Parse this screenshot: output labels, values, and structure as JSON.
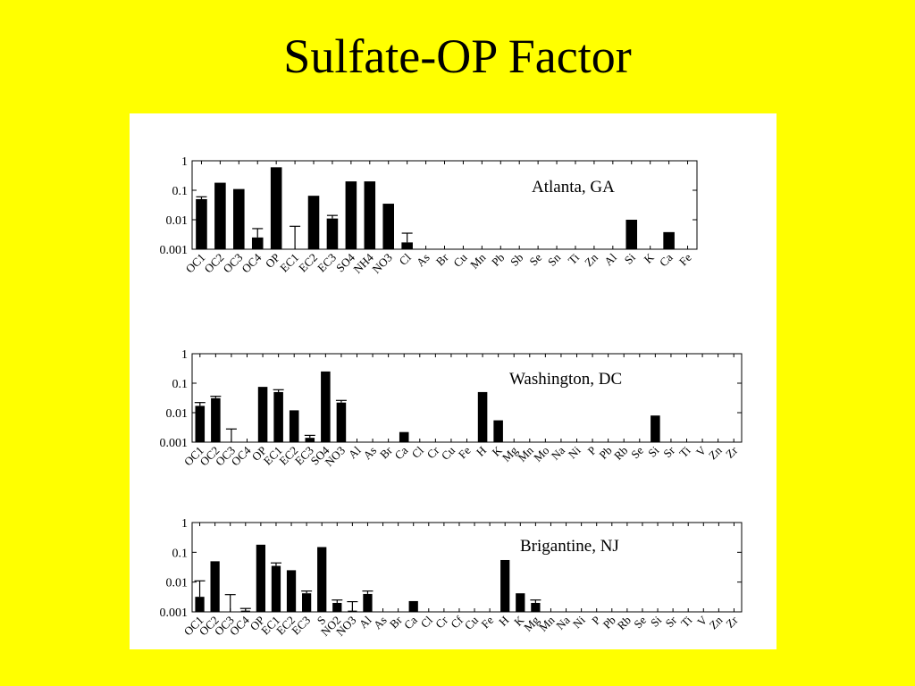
{
  "slide": {
    "title": "Sulfate-OP Factor"
  },
  "chart_data": [
    {
      "type": "bar",
      "title": "Atlanta, GA",
      "yscale": "log",
      "ylim": [
        0.001,
        1
      ],
      "yticks": [
        "1",
        "0.1",
        "0.01",
        "0.001"
      ],
      "categories": [
        "OC1",
        "OC2",
        "OC3",
        "OC4",
        "OP",
        "EC1",
        "EC2",
        "EC3",
        "SO4",
        "NH4",
        "NO3",
        "Cl",
        "As",
        "Br",
        "Cu",
        "Mn",
        "Pb",
        "Sb",
        "Se",
        "Sn",
        "Ti",
        "Zn",
        "Al",
        "Si",
        "K",
        "Ca",
        "Fe"
      ],
      "values": [
        0.05,
        0.18,
        0.11,
        0.0025,
        0.6,
        null,
        0.065,
        0.011,
        0.2,
        0.2,
        0.035,
        0.0017,
        null,
        null,
        null,
        null,
        null,
        null,
        null,
        null,
        null,
        null,
        null,
        0.01,
        null,
        0.0038,
        null
      ],
      "error_upper": [
        0.06,
        null,
        null,
        0.005,
        null,
        0.006,
        null,
        0.014,
        null,
        null,
        null,
        0.0035,
        null,
        null,
        null,
        null,
        null,
        null,
        null,
        null,
        null,
        null,
        null,
        null,
        null,
        null,
        null
      ],
      "series_color": "#000000"
    },
    {
      "type": "bar",
      "title": "Washington, DC",
      "yscale": "log",
      "ylim": [
        0.001,
        1
      ],
      "yticks": [
        "1",
        "0.1",
        "0.01",
        "0.001"
      ],
      "categories": [
        "OC1",
        "OC2",
        "OC3",
        "OC4",
        "OP",
        "EC1",
        "EC2",
        "EC3",
        "SO4",
        "NO3",
        "Al",
        "As",
        "Br",
        "Ca",
        "Cl",
        "Cr",
        "Cu",
        "Fe",
        "H",
        "K",
        "Mg",
        "Mn",
        "Mo",
        "Na",
        "Ni",
        "P",
        "Pb",
        "Rb",
        "Se",
        "Si",
        "Sr",
        "Ti",
        "V",
        "Zn",
        "Zr"
      ],
      "values": [
        0.017,
        0.031,
        null,
        null,
        0.075,
        0.05,
        0.012,
        0.0014,
        0.25,
        0.022,
        null,
        null,
        null,
        0.0022,
        null,
        null,
        null,
        null,
        0.05,
        0.0055,
        null,
        null,
        null,
        null,
        null,
        null,
        null,
        null,
        null,
        0.008,
        null,
        null,
        null,
        null,
        null
      ],
      "error_upper": [
        0.022,
        0.036,
        0.0028,
        null,
        null,
        0.06,
        null,
        0.0017,
        null,
        0.026,
        null,
        null,
        null,
        null,
        null,
        null,
        null,
        null,
        null,
        null,
        null,
        null,
        null,
        null,
        null,
        null,
        null,
        null,
        null,
        null,
        null,
        null,
        null,
        null,
        null
      ],
      "series_color": "#000000"
    },
    {
      "type": "bar",
      "title": "Brigantine, NJ",
      "yscale": "log",
      "ylim": [
        0.001,
        1
      ],
      "yticks": [
        "1",
        "0.1",
        "0.01",
        "0.001"
      ],
      "categories": [
        "OC1",
        "OC2",
        "OC3",
        "OC4",
        "OP",
        "EC1",
        "EC2",
        "EC3",
        "S",
        "NO2",
        "NO3",
        "Al",
        "As",
        "Br",
        "Ca",
        "Cl",
        "Cr",
        "Cf",
        "Cu",
        "Fe",
        "H",
        "K",
        "Mg",
        "Mn",
        "Na",
        "Ni",
        "P",
        "Pb",
        "Rb",
        "Se",
        "Si",
        "Sr",
        "Ti",
        "V",
        "Zn",
        "Zr"
      ],
      "values": [
        0.0032,
        0.05,
        null,
        0.0011,
        0.18,
        0.035,
        0.025,
        0.0042,
        0.15,
        0.002,
        0.0011,
        0.004,
        null,
        null,
        0.0023,
        null,
        null,
        null,
        null,
        null,
        0.055,
        0.0042,
        0.002,
        null,
        null,
        null,
        null,
        null,
        null,
        null,
        null,
        null,
        null,
        null,
        null,
        null
      ],
      "error_upper": [
        0.011,
        null,
        0.0038,
        0.0013,
        null,
        0.044,
        null,
        0.005,
        null,
        0.0025,
        0.0022,
        0.005,
        null,
        null,
        null,
        null,
        null,
        null,
        null,
        null,
        null,
        null,
        0.0025,
        null,
        null,
        null,
        null,
        null,
        null,
        null,
        null,
        null,
        null,
        null,
        null,
        null
      ],
      "series_color": "#000000"
    }
  ]
}
